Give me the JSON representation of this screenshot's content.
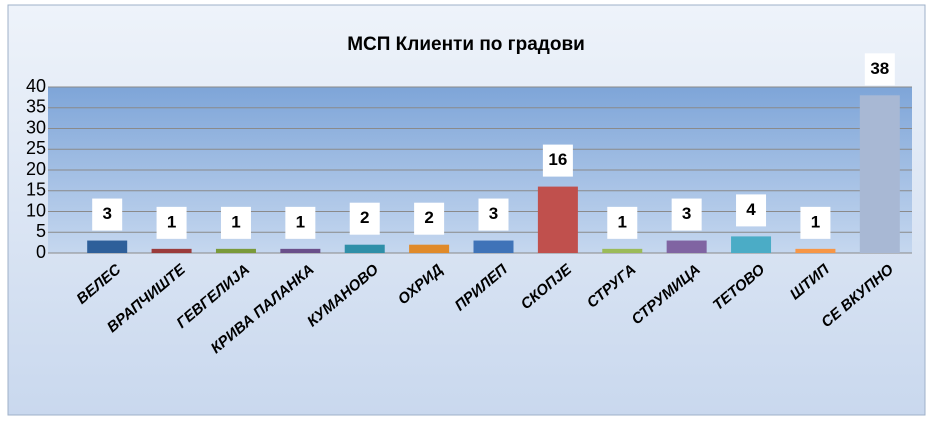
{
  "chart_data": {
    "type": "bar",
    "title": "МСП Клиенти  по градови",
    "categories": [
      "ВЕЛЕС",
      "ВРАПЧИШТЕ",
      "ГЕВГЕЛИЈА",
      "КРИВА ПАЛАНКА",
      "КУМАНОВО",
      "ОХРИД",
      "ПРИЛЕП",
      "СКОПЈЕ",
      "СТРУГА",
      "СТРУМИЦА",
      "ТЕТОВО",
      "ШТИП",
      "СЕ ВКУПНО"
    ],
    "values": [
      3,
      1,
      1,
      1,
      2,
      2,
      3,
      16,
      1,
      3,
      4,
      1,
      38
    ],
    "colors": [
      "#2e5f9a",
      "#9b3b3b",
      "#7a9a3a",
      "#6a4f8a",
      "#2f8fa8",
      "#e08a2a",
      "#3f73b8",
      "#c0504d",
      "#9bbb59",
      "#8064a2",
      "#4bacc6",
      "#f79646",
      "#a8b8d4"
    ],
    "ylim": [
      0,
      40
    ],
    "yticks": [
      0,
      5,
      10,
      15,
      20,
      25,
      30,
      35,
      40
    ],
    "grid": true
  }
}
